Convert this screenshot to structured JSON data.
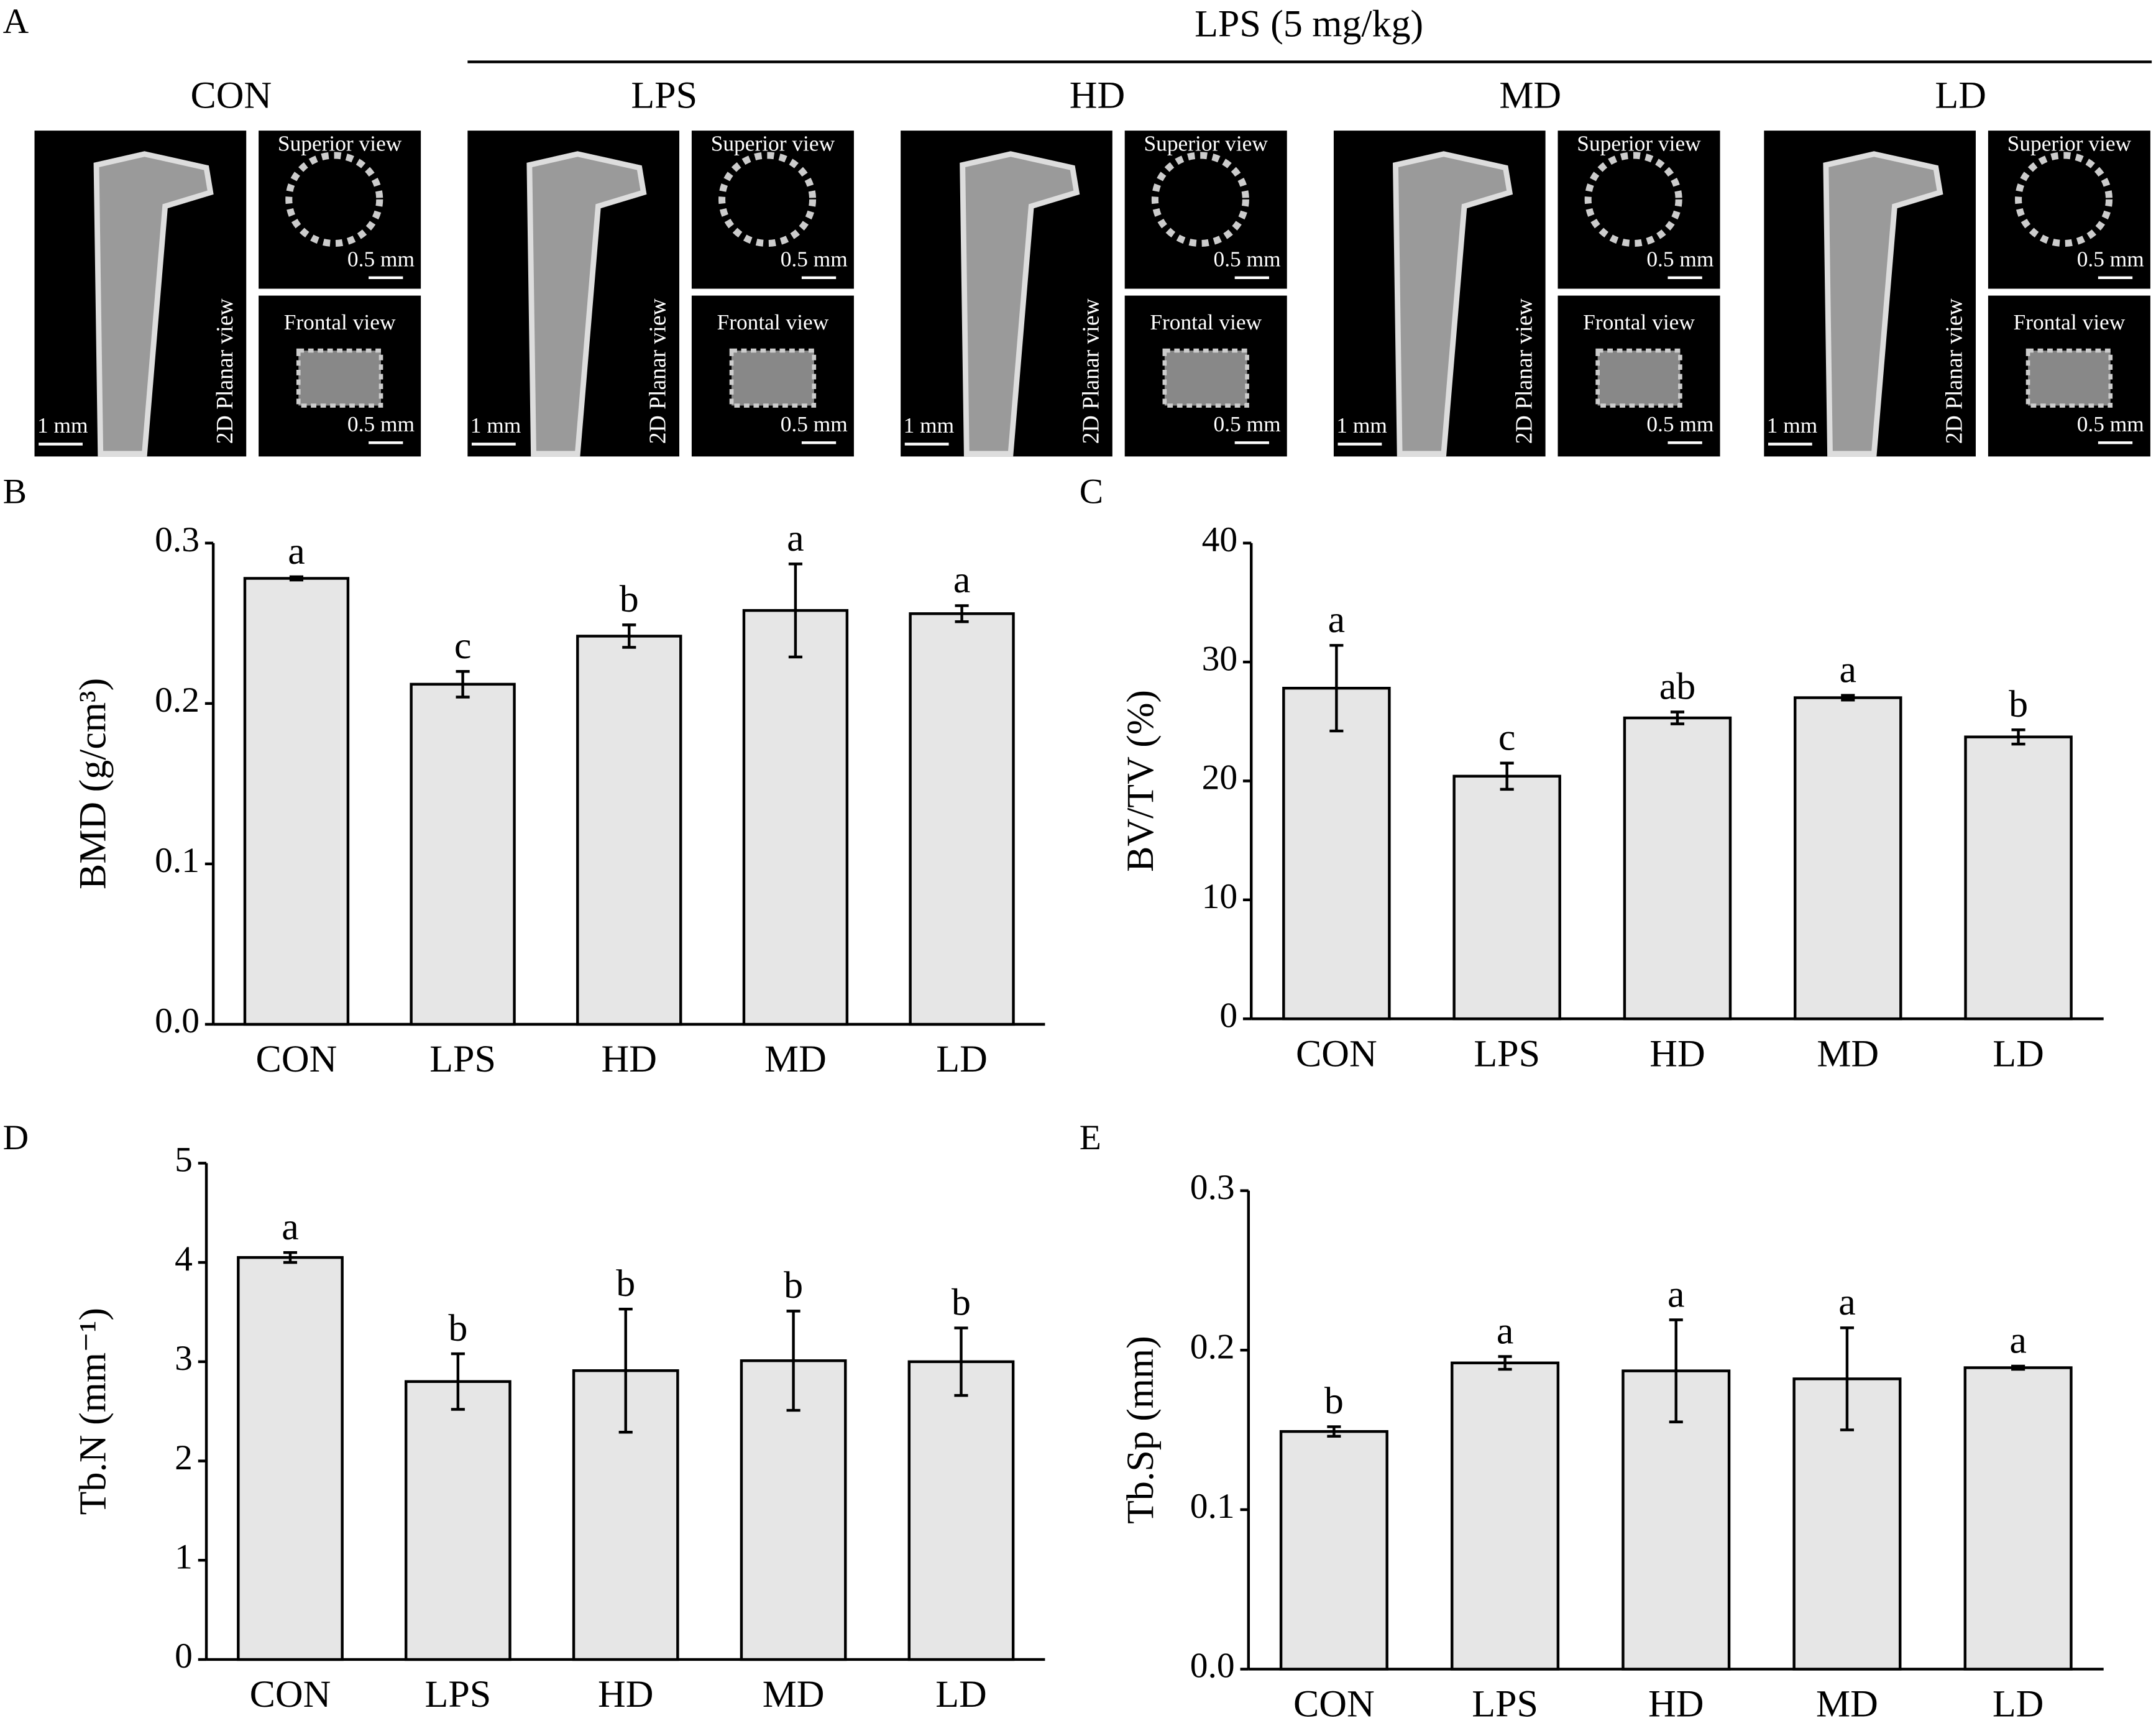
{
  "panel_a": {
    "label": "A",
    "treatment": "LPS (5 mg/kg)",
    "groups": [
      "CON",
      "LPS",
      "HD",
      "MD",
      "LD"
    ],
    "superior_view": "Superior view",
    "frontal_view": "Frontal view",
    "planar_view": "2D Planar view",
    "scale_large": "1 mm",
    "scale_small": "0.5 mm"
  },
  "chart_data": [
    {
      "type": "bar",
      "panel": "B",
      "ylabel": "BMD (g/cm³)",
      "categories": [
        "CON",
        "LPS",
        "HD",
        "MD",
        "LD"
      ],
      "values": [
        0.278,
        0.212,
        0.242,
        0.258,
        0.256
      ],
      "errors": [
        0.001,
        0.008,
        0.007,
        0.029,
        0.005
      ],
      "annotations": [
        "a",
        "c",
        "b",
        "a",
        "a"
      ],
      "color": "#e6e6e6",
      "ylim": [
        0,
        0.3
      ],
      "yticks": [
        {
          "value": 0,
          "label": "0.0"
        },
        0.1,
        0.2,
        0.3
      ]
    },
    {
      "type": "bar",
      "panel": "C",
      "ylabel": "BV/TV (%)",
      "categories": [
        "CON",
        "LPS",
        "HD",
        "MD",
        "LD"
      ],
      "values": [
        27.8,
        20.4,
        25.3,
        27.0,
        23.7
      ],
      "errors": [
        3.6,
        1.1,
        0.5,
        0.2,
        0.6
      ],
      "annotations": [
        "a",
        "c",
        "ab",
        "a",
        "b"
      ],
      "color": "#e6e6e6",
      "ylim": [
        0,
        40
      ],
      "yticks": [
        0,
        10,
        20,
        30,
        40
      ]
    },
    {
      "type": "bar",
      "panel": "D",
      "ylabel": "Tb.N (mm⁻¹)",
      "categories": [
        "CON",
        "LPS",
        "HD",
        "MD",
        "LD"
      ],
      "values": [
        4.05,
        2.8,
        2.91,
        3.01,
        3.0
      ],
      "errors": [
        0.05,
        0.28,
        0.62,
        0.5,
        0.34
      ],
      "annotations": [
        "a",
        "b",
        "b",
        "b",
        "b"
      ],
      "color": "#e6e6e6",
      "ylim": [
        0,
        5
      ],
      "yticks": [
        0,
        1,
        2,
        3,
        4,
        5
      ]
    },
    {
      "type": "bar",
      "panel": "E",
      "ylabel": "Tb.Sp (mm)",
      "categories": [
        "CON",
        "LPS",
        "HD",
        "MD",
        "LD"
      ],
      "values": [
        0.149,
        0.192,
        0.187,
        0.182,
        0.189
      ],
      "errors": [
        0.003,
        0.004,
        0.032,
        0.032,
        0.001
      ],
      "annotations": [
        "b",
        "a",
        "a",
        "a",
        "a"
      ],
      "color": "#e6e6e6",
      "ylim": [
        0,
        0.3
      ],
      "yticks": [
        {
          "value": 0,
          "label": "0.0"
        },
        0.1,
        0.2,
        0.3
      ]
    }
  ]
}
